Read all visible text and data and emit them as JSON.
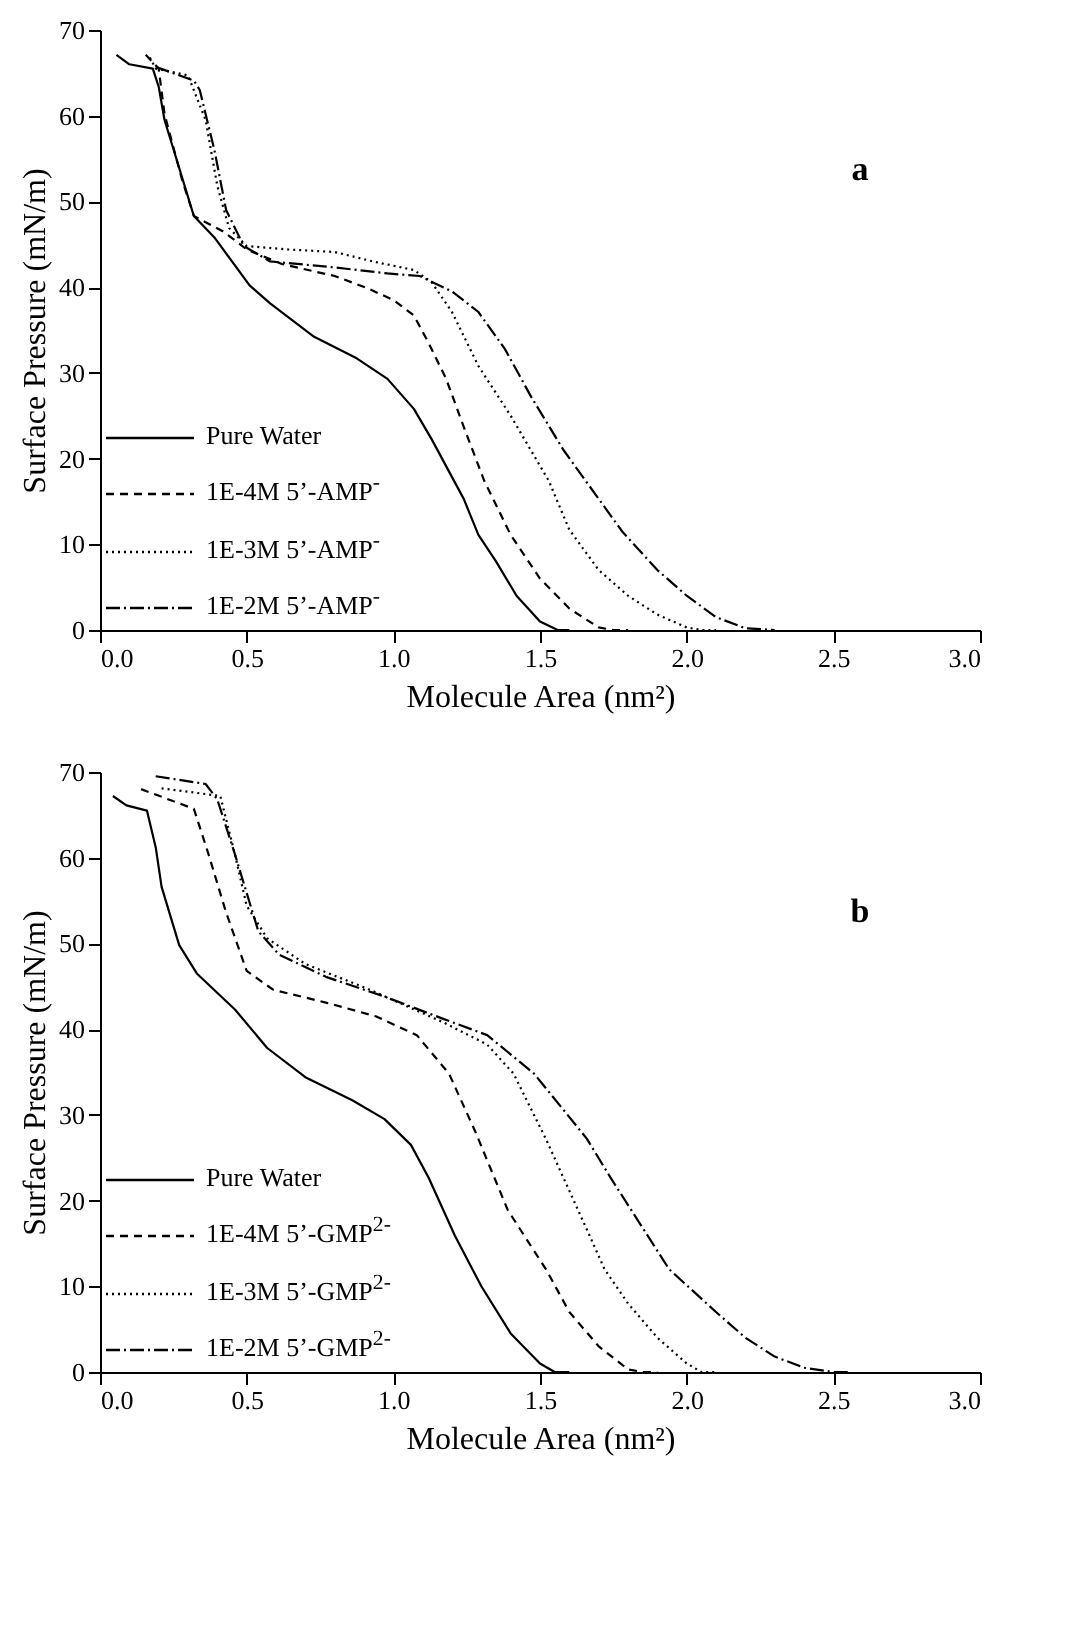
{
  "chart_data": [
    {
      "type": "line",
      "annotations": [
        "a"
      ],
      "xlabel": "Molecule Area (nm²)",
      "ylabel": "Surface Pressure (mN/m)",
      "xlim": [
        0,
        3
      ],
      "ylim": [
        0,
        70
      ],
      "xticks": [
        {
          "value": 0,
          "label": "0.0"
        },
        {
          "value": 0.5,
          "label": "0.5"
        },
        {
          "value": 1,
          "label": "1.0"
        },
        {
          "value": 1.5,
          "label": "1.5"
        },
        {
          "value": 2,
          "label": "2.0"
        },
        {
          "value": 2.5,
          "label": "2.5"
        },
        {
          "value": 3,
          "label": "3.0"
        }
      ],
      "yticks": [
        0,
        10,
        20,
        30,
        40,
        50,
        60,
        70
      ],
      "grid": false,
      "legend": "bottom left",
      "marker": "none",
      "series": [
        {
          "name": "Pure Water",
          "color": "#000000",
          "line_style": "solid",
          "x": [
            0.056,
            0.1,
            0.18,
            0.2,
            0.22,
            0.27,
            0.32,
            0.39,
            0.51,
            0.58,
            0.73,
            0.87,
            0.98,
            1.07,
            1.13,
            1.24,
            1.29,
            1.35,
            1.42,
            1.5,
            1.56,
            1.6
          ],
          "values": [
            67.1,
            66,
            65.5,
            63.4,
            59.5,
            53.9,
            48.3,
            45.8,
            40.2,
            38.1,
            34.2,
            31.8,
            29.3,
            25.8,
            22.3,
            15.3,
            11.1,
            8,
            4,
            1,
            0,
            0
          ]
        },
        {
          "name": "1E-4M 5’-AMP$^{-}$",
          "color": "#000000",
          "line_style": "dashed",
          "x": [
            0.156,
            0.2,
            0.22,
            0.28,
            0.32,
            0.42,
            0.5,
            0.62,
            0.8,
            0.91,
            1,
            1.07,
            1.12,
            1.18,
            1.24,
            1.31,
            1.4,
            1.5,
            1.6,
            1.7,
            1.75,
            1.8
          ],
          "values": [
            67.1,
            65.5,
            60.2,
            52.5,
            48.3,
            46.5,
            44.4,
            42.7,
            41.3,
            39.9,
            38.5,
            36.7,
            33.5,
            29.3,
            23.7,
            17.4,
            11.1,
            6,
            2.5,
            0.3,
            0,
            0
          ]
        },
        {
          "name": "1E-3M 5’-AMP$^{-}$",
          "color": "#000000",
          "line_style": "dotted",
          "x": [
            0.17,
            0.19,
            0.3,
            0.36,
            0.4,
            0.44,
            0.5,
            0.64,
            0.8,
            0.93,
            1.07,
            1.13,
            1.2,
            1.29,
            1.4,
            1.53,
            1.6,
            1.7,
            1.8,
            1.9,
            2,
            2.05,
            2.1
          ],
          "values": [
            66.8,
            65.5,
            64.7,
            59.5,
            51.8,
            46.9,
            44.8,
            44.4,
            44.1,
            43,
            42,
            40.6,
            37.1,
            30.8,
            25,
            17.4,
            11.7,
            7,
            4,
            1.8,
            0.3,
            0,
            0
          ]
        },
        {
          "name": "1E-2M 5’-AMP$^{-}$",
          "color": "#000000",
          "line_style": "dashdot",
          "x": [
            0.19,
            0.32,
            0.34,
            0.39,
            0.43,
            0.49,
            0.58,
            0.8,
            0.98,
            1.09,
            1.2,
            1.29,
            1.38,
            1.47,
            1.58,
            1.78,
            1.9,
            2,
            2.1,
            2.2,
            2.3
          ],
          "values": [
            65.7,
            64.1,
            63,
            56,
            49,
            44.8,
            43,
            42.3,
            41.6,
            41.3,
            39.5,
            37.1,
            32.8,
            27.2,
            21,
            11.5,
            7,
            4,
            1.5,
            0.2,
            0
          ]
        }
      ]
    },
    {
      "type": "line",
      "annotations": [
        "b"
      ],
      "xlabel": "Molecule Area (nm²)",
      "ylabel": "Surface Pressure (mN/m)",
      "xlim": [
        0,
        3
      ],
      "ylim": [
        0,
        70
      ],
      "xticks": [
        {
          "value": 0,
          "label": "0.0"
        },
        {
          "value": 0.5,
          "label": "0.5"
        },
        {
          "value": 1,
          "label": "1.0"
        },
        {
          "value": 1.5,
          "label": "1.5"
        },
        {
          "value": 2,
          "label": "2.0"
        },
        {
          "value": 2.5,
          "label": "2.5"
        },
        {
          "value": 3,
          "label": "3.0"
        }
      ],
      "yticks": [
        0,
        10,
        20,
        30,
        40,
        50,
        60,
        70
      ],
      "grid": false,
      "legend": "bottom left",
      "marker": "none",
      "series": [
        {
          "name": "Pure Water",
          "color": "#000000",
          "line_style": "solid",
          "x": [
            0.044,
            0.09,
            0.16,
            0.19,
            0.21,
            0.27,
            0.33,
            0.46,
            0.57,
            0.7,
            0.86,
            0.97,
            1.06,
            1.12,
            1.21,
            1.3,
            1.4,
            1.5,
            1.55,
            1.6
          ],
          "values": [
            67.2,
            66.1,
            65.5,
            61.2,
            56.6,
            49.8,
            46.5,
            42.3,
            37.8,
            34.4,
            31.7,
            29.5,
            26.5,
            22.7,
            15.9,
            10,
            4.5,
            1,
            0,
            0
          ]
        },
        {
          "name": "1E-4M 5’-GMP$^{2-}$",
          "color": "#000000",
          "line_style": "dashed",
          "x": [
            0.14,
            0.32,
            0.37,
            0.43,
            0.5,
            0.59,
            0.77,
            0.94,
            1.08,
            1.19,
            1.28,
            1.39,
            1.52,
            1.6,
            1.7,
            1.8,
            1.85,
            1.9
          ],
          "values": [
            68,
            65.7,
            60.4,
            53.6,
            46.8,
            44.6,
            43.1,
            41.5,
            39.3,
            34.8,
            28,
            18.9,
            12,
            7,
            3,
            0.3,
            0,
            0
          ]
        },
        {
          "name": "1E-3M 5’-GMP$^{2-}$",
          "color": "#000000",
          "line_style": "dotted",
          "x": [
            0.21,
            0.41,
            0.46,
            0.5,
            0.57,
            0.7,
            0.92,
            1.17,
            1.32,
            1.41,
            1.52,
            1.66,
            1.72,
            1.8,
            1.9,
            2,
            2.05,
            2.1
          ],
          "values": [
            68.1,
            67.2,
            60.4,
            54.4,
            50.6,
            47.6,
            44.6,
            40.8,
            38.2,
            34.8,
            27.2,
            16.6,
            12,
            8,
            4,
            1,
            0,
            0
          ]
        },
        {
          "name": "1E-2M 5’-GMP$^{2-}$",
          "color": "#000000",
          "line_style": "dashdot",
          "x": [
            0.19,
            0.36,
            0.4,
            0.46,
            0.54,
            0.61,
            0.77,
            0.97,
            1.17,
            1.32,
            1.48,
            1.66,
            1.74,
            1.94,
            2.1,
            2.2,
            2.3,
            2.4,
            2.5,
            2.55
          ],
          "values": [
            69.5,
            68.6,
            66.8,
            60.4,
            51.4,
            48.7,
            46.1,
            43.8,
            41.2,
            39.3,
            34.8,
            27.2,
            22.7,
            12,
            7,
            4,
            1.8,
            0.5,
            0,
            0
          ]
        }
      ]
    }
  ]
}
